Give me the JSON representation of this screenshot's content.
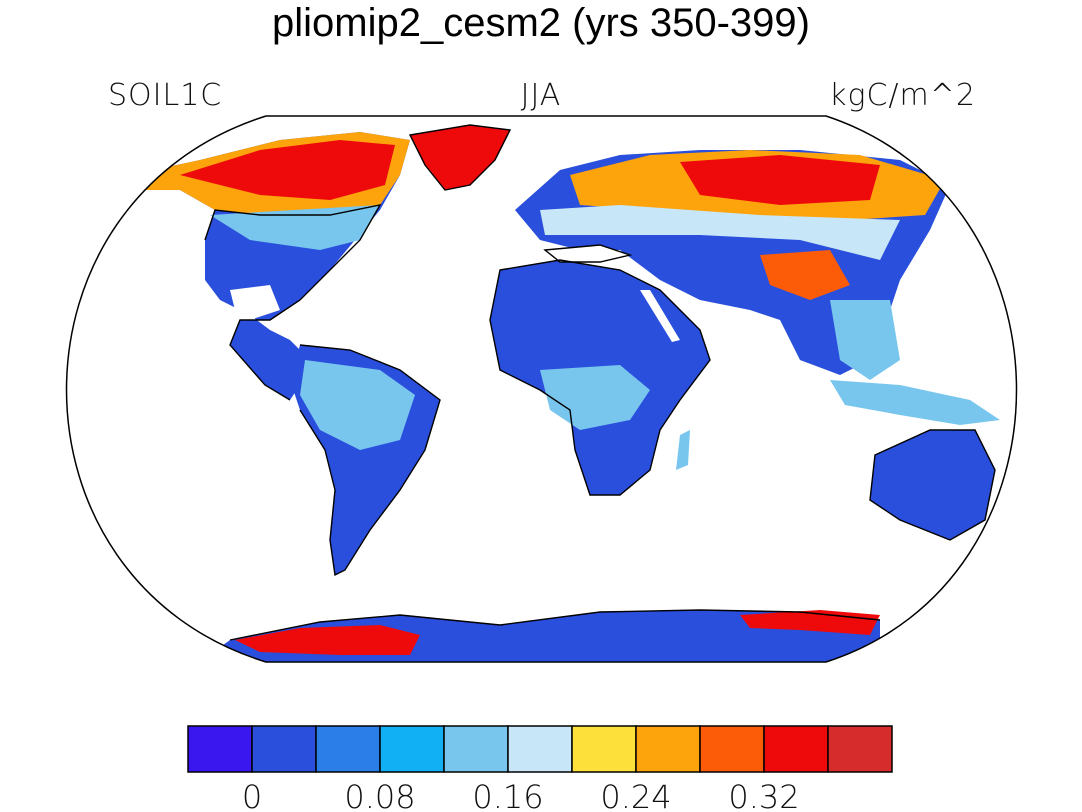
{
  "title": "pliomip2_cesm2 (yrs 350-399)",
  "labels": {
    "left": "SOIL1C",
    "center": "JJA",
    "right": "kgC/m^2"
  },
  "colorbar": {
    "colors": [
      "#3a17ee",
      "#2a4fdc",
      "#2b7de8",
      "#11b0f4",
      "#78c6ee",
      "#c7e6f7",
      "#fde03a",
      "#fda40d",
      "#fc5b08",
      "#ee0a0a",
      "#d72c2c"
    ],
    "tick_labels": [
      "0",
      "0.08",
      "0.16",
      "0.24",
      "0.32"
    ]
  },
  "map": {
    "projection": "Robinson",
    "land_colors": {
      "low": "#2a4fdc",
      "mid": "#78c6ee",
      "pale": "#c7e6f7",
      "yellow": "#fde03a",
      "orange": "#fda40d",
      "red": "#ee0a0a"
    }
  }
}
